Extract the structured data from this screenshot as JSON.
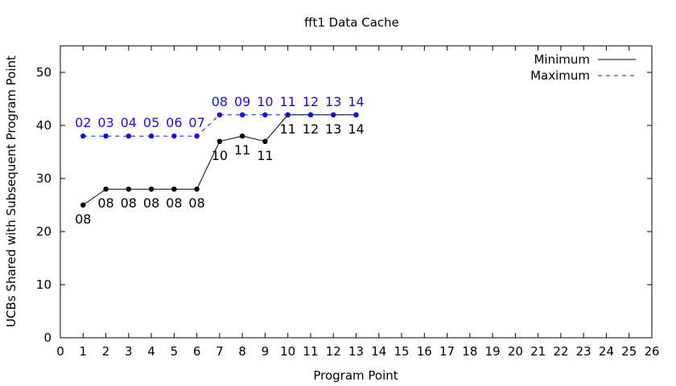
{
  "chart_data": {
    "type": "line",
    "title": "fft1 Data Cache",
    "xlabel": "Program Point",
    "ylabel": "UCBs Shared with Subsequent Program Point",
    "xlim": [
      0,
      26
    ],
    "ylim": [
      0,
      55
    ],
    "xticks": [
      "0",
      "1",
      "2",
      "3",
      "4",
      "5",
      "6",
      "7",
      "8",
      "9",
      "10",
      "11",
      "12",
      "13",
      "14",
      "15",
      "16",
      "17",
      "18",
      "19",
      "20",
      "21",
      "22",
      "23",
      "24",
      "25",
      "26"
    ],
    "yticks": [
      "0",
      "10",
      "20",
      "30",
      "40",
      "50"
    ],
    "grid": false,
    "legend_position": "top-right",
    "series": [
      {
        "name": "Minimum",
        "color": "#000000",
        "dash": "solid",
        "label_position": "below",
        "x": [
          1,
          2,
          3,
          4,
          5,
          6,
          7,
          8,
          9,
          10,
          11,
          12,
          13
        ],
        "y": [
          25,
          28,
          28,
          28,
          28,
          28,
          37,
          38,
          37,
          42,
          42,
          42,
          42
        ],
        "labels": [
          "08",
          "08",
          "08",
          "08",
          "08",
          "08",
          "10",
          "11",
          "11",
          "11",
          "12",
          "13",
          "14"
        ]
      },
      {
        "name": "Maximum",
        "color": "#1111dd",
        "dash": "dashed",
        "label_position": "above",
        "x": [
          1,
          2,
          3,
          4,
          5,
          6,
          7,
          8,
          9,
          10,
          11,
          12,
          13
        ],
        "y": [
          38,
          38,
          38,
          38,
          38,
          38,
          42,
          42,
          42,
          42,
          42,
          42,
          42
        ],
        "labels": [
          "02",
          "03",
          "04",
          "05",
          "06",
          "07",
          "08",
          "09",
          "10",
          "11",
          "12",
          "13",
          "14"
        ]
      }
    ]
  }
}
